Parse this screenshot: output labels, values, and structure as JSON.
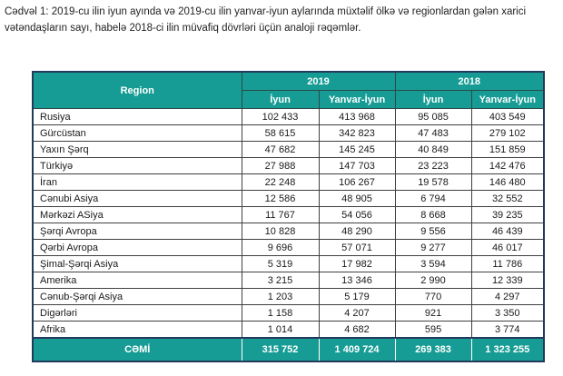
{
  "document": {
    "title": "Cədvəl 1: 2019-cu ilin iyun ayında və 2019-cu ilin yanvar-iyun aylarında müxtəlif ölkə və regionlardan gələn xarici vətəndaşların sayı, habelə 2018-ci ilin müvafiq dövrləri üçün analoji rəqəmlər."
  },
  "colors": {
    "accent_teal": "#169C94",
    "outer_border": "#223A5E",
    "inner_border": "#3F3F3F",
    "header_text": "#FFFFFF",
    "body_text": "#1A1A1A"
  },
  "table": {
    "region_header": "Region",
    "year_groups": [
      {
        "year": "2019",
        "months": [
          "İyun",
          "Yanvar-İyun"
        ]
      },
      {
        "year": "2018",
        "months": [
          "İyun",
          "Yanvar-İyun"
        ]
      }
    ],
    "rows": [
      {
        "region": "Rusiya",
        "values": [
          "102 433",
          "413 968",
          "95 085",
          "403 549"
        ]
      },
      {
        "region": "Gürcüstan",
        "values": [
          "58 615",
          "342 823",
          "47 483",
          "279 102"
        ]
      },
      {
        "region": "Yaxın Şərq",
        "values": [
          "47 682",
          "145 245",
          "40 849",
          "151 859"
        ]
      },
      {
        "region": "Türkiyə",
        "values": [
          "27 988",
          "147 703",
          "23 223",
          "142 476"
        ]
      },
      {
        "region": "İran",
        "values": [
          "22 248",
          "106 267",
          "19 578",
          "146 480"
        ]
      },
      {
        "region": "Cənubi Asiya",
        "values": [
          "12 586",
          "48 905",
          "6 794",
          "32 552"
        ]
      },
      {
        "region": "Mərkəzi ASiya",
        "values": [
          "11 767",
          "54 056",
          "8 668",
          "39 235"
        ]
      },
      {
        "region": "Şərqi Avropa",
        "values": [
          "10 828",
          "48 290",
          "9 556",
          "46 439"
        ]
      },
      {
        "region": "Qərbi Avropa",
        "values": [
          "9 696",
          "57 071",
          "9 277",
          "46 017"
        ]
      },
      {
        "region": "Şimal-Şərqi Asiya",
        "values": [
          "5 319",
          "17 982",
          "3 594",
          "11 786"
        ]
      },
      {
        "region": "Amerika",
        "values": [
          "3 215",
          "13 346",
          "2 990",
          "12 339"
        ]
      },
      {
        "region": "Cənub-Şərqi Asiya",
        "values": [
          "1 203",
          "5 179",
          "770",
          "4 297"
        ]
      },
      {
        "region": "Digərləri",
        "values": [
          "1 158",
          "4 207",
          "921",
          "3 350"
        ]
      },
      {
        "region": "Afrika",
        "values": [
          "1 014",
          "4 682",
          "595",
          "3 774"
        ]
      }
    ],
    "footer": {
      "label": "CƏMİ",
      "values": [
        "315 752",
        "1 409 724",
        "269 383",
        "1 323 255"
      ]
    }
  }
}
